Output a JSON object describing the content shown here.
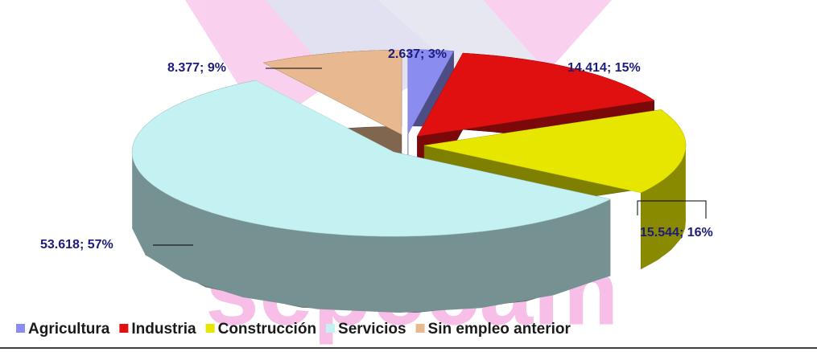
{
  "watermark": "sepecam",
  "chart_data": {
    "type": "pie3d",
    "categories": [
      "Agricultura",
      "Industria",
      "Construcción",
      "Servicios",
      "Sin empleo anterior"
    ],
    "values": [
      2637,
      14414,
      15544,
      53618,
      8377
    ],
    "value_labels": [
      "2.637; 3%",
      "14.414; 15%",
      "15.544; 16%",
      "53.618; 57%",
      "8.377; 9%"
    ],
    "colors": [
      "#8a8cf0",
      "#e01010",
      "#e6e600",
      "#c4f2f2",
      "#e8b890"
    ],
    "legend": "bottom"
  }
}
